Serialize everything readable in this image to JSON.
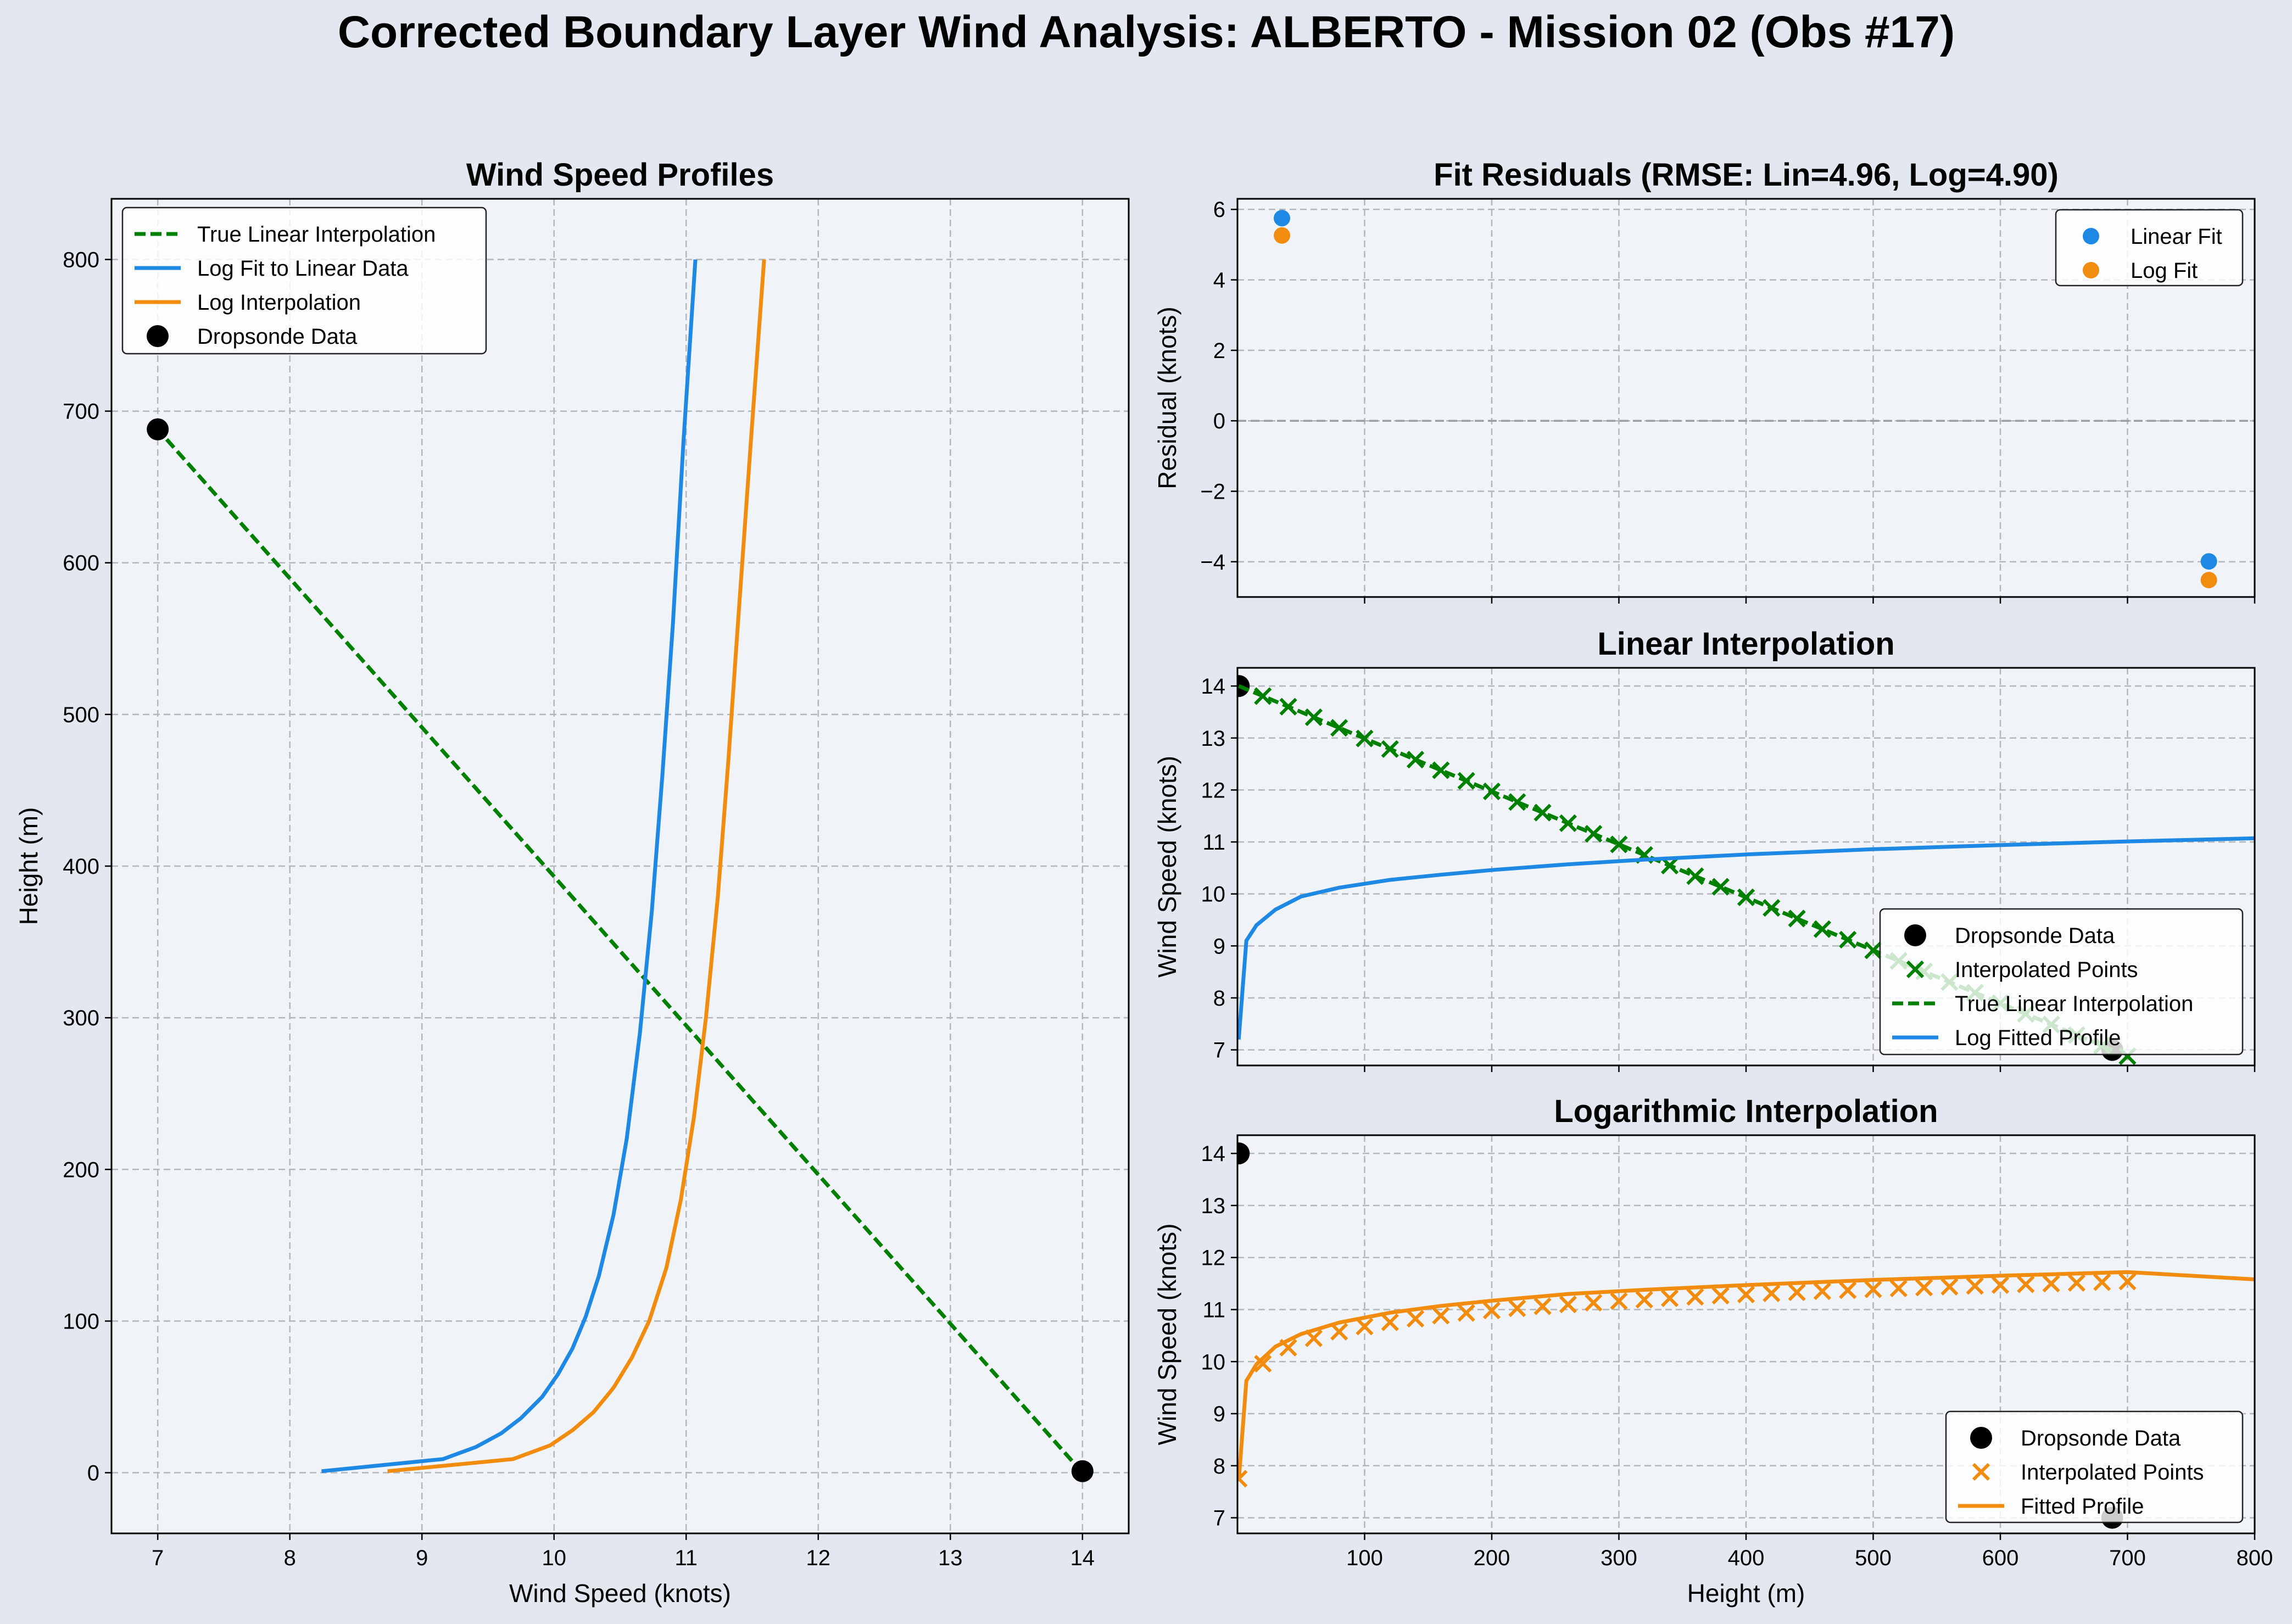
{
  "title": "Corrected Boundary Layer Wind Analysis: ALBERTO - Mission 02 (Obs #17)",
  "colors": {
    "linear": "#008000",
    "log_fit": "#1e88e5",
    "log_interp": "#f28c0f",
    "obs": "#000000"
  },
  "chart_data": [
    {
      "id": "profiles",
      "type": "line",
      "title": "Wind Speed Profiles",
      "xlabel": "Wind Speed (knots)",
      "ylabel": "Height (m)",
      "xlim": [
        6.65,
        14.35
      ],
      "ylim": [
        -40,
        840
      ],
      "xticks": [
        7,
        8,
        9,
        10,
        11,
        12,
        13,
        14
      ],
      "yticks": [
        0,
        100,
        200,
        300,
        400,
        500,
        600,
        700,
        800
      ],
      "grid": true,
      "legend_position": "upper-left",
      "series": [
        {
          "name": "True Linear Interpolation",
          "style": "dashed",
          "color": "#008000",
          "points": [
            [
              14.0,
              0
            ],
            [
              7.0,
              688
            ]
          ]
        },
        {
          "name": "Log Fit to Linear Data",
          "style": "solid",
          "color": "#1e88e5",
          "points": [
            [
              8.24,
              1
            ],
            [
              9.16,
              9
            ],
            [
              9.41,
              17
            ],
            [
              9.6,
              26
            ],
            [
              9.75,
              36
            ],
            [
              9.91,
              50
            ],
            [
              10.03,
              65
            ],
            [
              10.14,
              82
            ],
            [
              10.24,
              103
            ],
            [
              10.34,
              130
            ],
            [
              10.45,
              170
            ],
            [
              10.55,
              220
            ],
            [
              10.65,
              290
            ],
            [
              10.74,
              370
            ],
            [
              10.82,
              460
            ],
            [
              10.9,
              560
            ],
            [
              10.98,
              680
            ],
            [
              11.07,
              800
            ]
          ]
        },
        {
          "name": "Log Interpolation",
          "style": "solid",
          "color": "#f28c0f",
          "points": [
            [
              8.74,
              1
            ],
            [
              9.69,
              9
            ],
            [
              9.97,
              18
            ],
            [
              10.14,
              28
            ],
            [
              10.3,
              40
            ],
            [
              10.45,
              56
            ],
            [
              10.59,
              76
            ],
            [
              10.72,
              100
            ],
            [
              10.85,
              135
            ],
            [
              10.96,
              180
            ],
            [
              11.06,
              235
            ],
            [
              11.15,
              300
            ],
            [
              11.24,
              380
            ],
            [
              11.32,
              470
            ],
            [
              11.4,
              570
            ],
            [
              11.49,
              680
            ],
            [
              11.59,
              800
            ]
          ]
        },
        {
          "name": "Dropsonde Data",
          "style": "markers",
          "color": "#000000",
          "points": [
            [
              7.0,
              688
            ],
            [
              14.0,
              1
            ]
          ]
        }
      ]
    },
    {
      "id": "residuals",
      "type": "scatter",
      "title": "Fit Residuals (RMSE: Lin=4.96, Log=4.90)",
      "xlabel": "",
      "ylabel": "Residual (knots)",
      "xlim": [
        0,
        800
      ],
      "ylim": [
        -5.0,
        6.3
      ],
      "yticks": [
        -4,
        -2,
        0,
        2,
        4,
        6
      ],
      "grid": true,
      "zero_line": true,
      "legend_position": "upper-right",
      "series": [
        {
          "name": "Linear Fit",
          "color": "#1e88e5",
          "points": [
            [
              35,
              5.75
            ],
            [
              764,
              -3.99
            ]
          ]
        },
        {
          "name": "Log Fit",
          "color": "#f28c0f",
          "points": [
            [
              35,
              5.26
            ],
            [
              764,
              -4.52
            ]
          ]
        }
      ]
    },
    {
      "id": "linear",
      "type": "line",
      "title": "Linear Interpolation",
      "xlabel": "",
      "ylabel": "Wind Speed (knots)",
      "xlim": [
        0,
        800
      ],
      "ylim": [
        6.7,
        14.35
      ],
      "yticks": [
        7,
        8,
        9,
        10,
        11,
        12,
        13,
        14
      ],
      "grid": true,
      "legend_position": "lower-right",
      "series": [
        {
          "name": "Dropsonde Data",
          "kind": "points",
          "color": "#000000",
          "points": [
            [
              1,
              14.0
            ],
            [
              688,
              7.0
            ]
          ]
        },
        {
          "name": "Interpolated Points",
          "kind": "linear_x",
          "color": "#008000",
          "x_start": 20,
          "x_end": 700,
          "x_step": 20,
          "x0": 1,
          "y0": 14.0,
          "x1": 688,
          "y1": 7.0
        },
        {
          "name": "True Linear Interpolation",
          "kind": "segment",
          "color": "#008000",
          "points": [
            [
              1,
              14.0
            ],
            [
              688,
              7.0
            ]
          ]
        },
        {
          "name": "Log Fitted Profile",
          "kind": "curve",
          "color": "#1e88e5",
          "points": [
            [
              1,
              7.2
            ],
            [
              7,
              9.1
            ],
            [
              15,
              9.4
            ],
            [
              30,
              9.7
            ],
            [
              50,
              9.95
            ],
            [
              80,
              10.12
            ],
            [
              120,
              10.27
            ],
            [
              160,
              10.37
            ],
            [
              200,
              10.46
            ],
            [
              260,
              10.57
            ],
            [
              320,
              10.66
            ],
            [
              400,
              10.76
            ],
            [
              500,
              10.86
            ],
            [
              600,
              10.94
            ],
            [
              700,
              11.01
            ],
            [
              800,
              11.07
            ]
          ]
        }
      ]
    },
    {
      "id": "logarithmic",
      "type": "line",
      "title": "Logarithmic Interpolation",
      "xlabel": "Height (m)",
      "ylabel": "Wind Speed (knots)",
      "xlim": [
        0,
        800
      ],
      "ylim": [
        6.7,
        14.35
      ],
      "xticks": [
        100,
        200,
        300,
        400,
        500,
        600,
        700,
        800
      ],
      "yticks": [
        7,
        8,
        9,
        10,
        11,
        12,
        13,
        14
      ],
      "grid": true,
      "legend_position": "lower-right",
      "series": [
        {
          "name": "Dropsonde Data",
          "kind": "points",
          "color": "#000000",
          "points": [
            [
              1,
              14.0
            ],
            [
              688,
              7.0
            ]
          ]
        },
        {
          "name": "Interpolated Points",
          "kind": "log_x",
          "color": "#f28c0f",
          "x_start": 20,
          "x_end": 700,
          "x_step": 20,
          "a": 8.63,
          "b": 0.444,
          "z0": 1,
          "extra": [
            [
              1,
              7.75
            ]
          ]
        },
        {
          "name": "Fitted Profile",
          "kind": "curve",
          "color": "#f28c0f",
          "points": [
            [
              1,
              7.7
            ],
            [
              7,
              9.63
            ],
            [
              15,
              9.95
            ],
            [
              30,
              10.29
            ],
            [
              50,
              10.53
            ],
            [
              80,
              10.75
            ],
            [
              120,
              10.94
            ],
            [
              160,
              11.07
            ],
            [
              200,
              11.17
            ],
            [
              260,
              11.3
            ],
            [
              320,
              11.38
            ],
            [
              400,
              11.47
            ],
            [
              500,
              11.57
            ],
            [
              600,
              11.65
            ],
            [
              700,
              11.72
            ],
            [
              800,
              11.58
            ]
          ]
        }
      ]
    }
  ]
}
